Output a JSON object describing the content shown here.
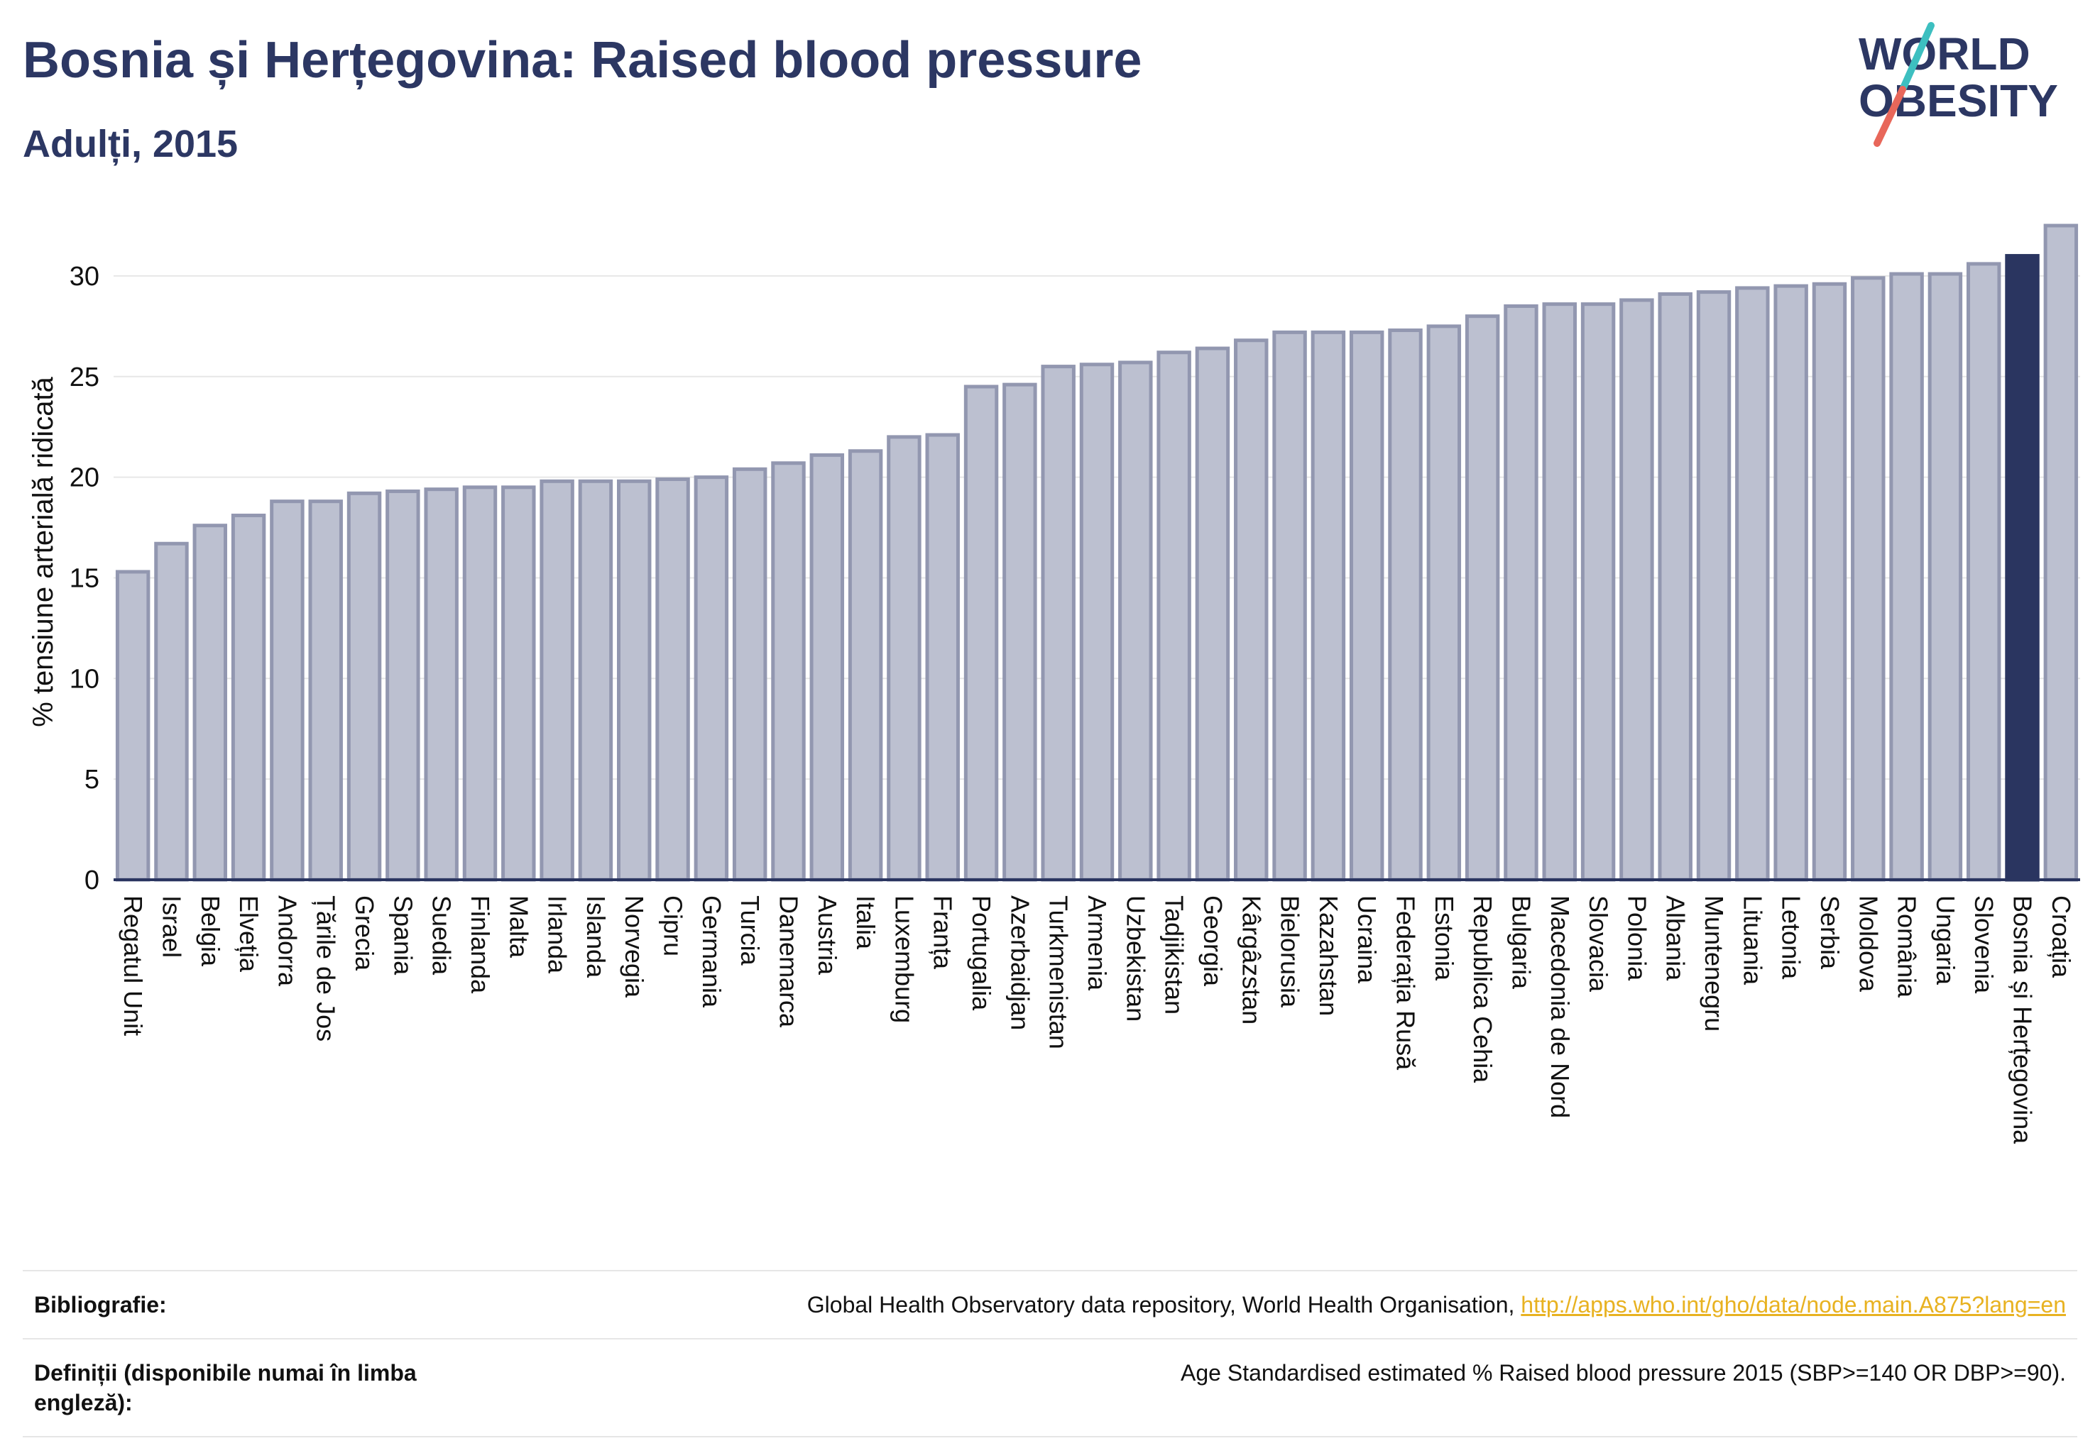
{
  "header": {
    "title": "Bosnia și Herțegovina: Raised blood pressure",
    "subtitle": "Adulți, 2015"
  },
  "logo": {
    "line1": "WORLD",
    "line2": "OBESITY",
    "text_color": "#2c3763",
    "slash_top_color": "#3dbfc0",
    "slash_bottom_color": "#e8675a"
  },
  "colors": {
    "bar_fill": "#bcc0d0",
    "bar_stroke": "#9297b0",
    "highlight": "#2a3560",
    "axis_text": "#111111",
    "grid": "#e7e7e7"
  },
  "chart_data": {
    "type": "bar",
    "ylabel": "% tensiune arterială ridicată",
    "xlabel": "",
    "ylim": [
      0,
      32.5
    ],
    "yticks": [
      0,
      5,
      10,
      15,
      20,
      25,
      30
    ],
    "grid": true,
    "highlight_category": "Bosnia și Herțegovina",
    "categories": [
      "Regatul Unit",
      "Israel",
      "Belgia",
      "Elveția",
      "Andorra",
      "Țările de Jos",
      "Grecia",
      "Spania",
      "Suedia",
      "Finlanda",
      "Malta",
      "Irlanda",
      "Islanda",
      "Norvegia",
      "Cipru",
      "Germania",
      "Turcia",
      "Danemarca",
      "Austria",
      "Italia",
      "Luxemburg",
      "Franța",
      "Portugalia",
      "Azerbaidjan",
      "Turkmenistan",
      "Armenia",
      "Uzbekistan",
      "Tadjikistan",
      "Georgia",
      "Kârgâzstan",
      "Bielorusia",
      "Kazahstan",
      "Ucraina",
      "Federația Rusă",
      "Estonia",
      "Republica Cehia",
      "Bulgaria",
      "Macedonia de Nord",
      "Slovacia",
      "Polonia",
      "Albania",
      "Muntenegru",
      "Lituania",
      "Letonia",
      "Serbia",
      "Moldova",
      "România",
      "Ungaria",
      "Slovenia",
      "Bosnia și Herțegovina",
      "Croația"
    ],
    "values": [
      15.3,
      16.7,
      17.6,
      18.1,
      18.8,
      18.8,
      19.2,
      19.3,
      19.4,
      19.5,
      19.5,
      19.8,
      19.8,
      19.8,
      19.9,
      20.0,
      20.4,
      20.7,
      21.1,
      21.3,
      22.0,
      22.1,
      24.5,
      24.6,
      25.5,
      25.6,
      25.7,
      26.2,
      26.4,
      26.8,
      27.2,
      27.2,
      27.2,
      27.3,
      27.5,
      28.0,
      28.5,
      28.6,
      28.6,
      28.8,
      29.1,
      29.2,
      29.4,
      29.5,
      29.6,
      29.9,
      30.1,
      30.1,
      30.6,
      31.0,
      32.5
    ]
  },
  "footer": {
    "bibliography_label": "Bibliografie:",
    "bibliography_text": "Global Health Observatory data repository, World Health Organisation, ",
    "bibliography_link": "http://apps.who.int/gho/data/node.main.A875?lang=en",
    "definitions_label": "Definiții (disponibile numai în limba engleză):",
    "definitions_text": "Age Standardised estimated % Raised blood pressure 2015 (SBP>=140 OR DBP>=90)."
  }
}
